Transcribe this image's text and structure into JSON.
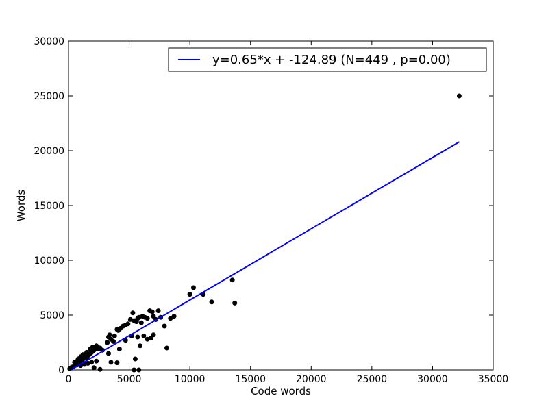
{
  "chart_data": {
    "type": "scatter",
    "xlabel": "Code words",
    "ylabel": "Words",
    "xlim": [
      0,
      35000
    ],
    "ylim": [
      0,
      30000
    ],
    "xticks": [
      0,
      5000,
      10000,
      15000,
      20000,
      25000,
      30000,
      35000
    ],
    "yticks": [
      0,
      5000,
      10000,
      15000,
      20000,
      25000,
      30000
    ],
    "xtick_labels": [
      "0",
      "5000",
      "10000",
      "15000",
      "20000",
      "25000",
      "30000",
      "35000"
    ],
    "ytick_labels": [
      "0",
      "5000",
      "10000",
      "15000",
      "20000",
      "25000",
      "30000"
    ],
    "grid": false,
    "legend_position": "top-right",
    "legend": [
      {
        "label": "y=0.65*x + -124.89  (N=449 , p=0.00)",
        "color": "#0000ff",
        "kind": "line"
      }
    ],
    "series": [
      {
        "kind": "scatter",
        "color": "#000000",
        "points": [
          [
            100,
            100
          ],
          [
            200,
            200
          ],
          [
            300,
            250
          ],
          [
            400,
            300
          ],
          [
            500,
            400
          ],
          [
            600,
            500
          ],
          [
            700,
            450
          ],
          [
            800,
            600
          ],
          [
            900,
            700
          ],
          [
            1000,
            750
          ],
          [
            1100,
            900
          ],
          [
            1200,
            1000
          ],
          [
            1300,
            1100
          ],
          [
            1400,
            1200
          ],
          [
            1500,
            1100
          ],
          [
            1600,
            1300
          ],
          [
            1700,
            1400
          ],
          [
            1800,
            1500
          ],
          [
            1900,
            1600
          ],
          [
            2000,
            1700
          ],
          [
            2100,
            1800
          ],
          [
            2200,
            1900
          ],
          [
            2300,
            2000
          ],
          [
            2400,
            2100
          ],
          [
            2500,
            1900
          ],
          [
            800,
            1000
          ],
          [
            1000,
            1200
          ],
          [
            1200,
            1400
          ],
          [
            1500,
            1600
          ],
          [
            1800,
            1900
          ],
          [
            2000,
            2100
          ],
          [
            2300,
            2200
          ],
          [
            2600,
            2000
          ],
          [
            2800,
            1800
          ],
          [
            1000,
            400
          ],
          [
            1300,
            500
          ],
          [
            1600,
            600
          ],
          [
            1900,
            700
          ],
          [
            2100,
            200
          ],
          [
            2300,
            800
          ],
          [
            2600,
            50
          ],
          [
            500,
            700
          ],
          [
            700,
            800
          ],
          [
            3200,
            2500
          ],
          [
            3300,
            3000
          ],
          [
            3400,
            3200
          ],
          [
            3500,
            2800
          ],
          [
            3700,
            2600
          ],
          [
            3800,
            3100
          ],
          [
            4000,
            3700
          ],
          [
            4100,
            3600
          ],
          [
            4300,
            3800
          ],
          [
            4500,
            4000
          ],
          [
            4700,
            4100
          ],
          [
            4900,
            4200
          ],
          [
            5100,
            4600
          ],
          [
            5300,
            5200
          ],
          [
            5400,
            4500
          ],
          [
            5600,
            4400
          ],
          [
            5700,
            4700
          ],
          [
            5800,
            4800
          ],
          [
            6000,
            4300
          ],
          [
            6100,
            4900
          ],
          [
            6300,
            4800
          ],
          [
            6500,
            4700
          ],
          [
            6700,
            5400
          ],
          [
            6900,
            5300
          ],
          [
            7000,
            4900
          ],
          [
            7200,
            4600
          ],
          [
            7400,
            5400
          ],
          [
            7600,
            4800
          ],
          [
            7900,
            4000
          ],
          [
            8400,
            4700
          ],
          [
            8700,
            4900
          ],
          [
            3300,
            1500
          ],
          [
            3500,
            700
          ],
          [
            4000,
            650
          ],
          [
            4200,
            1900
          ],
          [
            4700,
            2700
          ],
          [
            5200,
            3100
          ],
          [
            5500,
            1000
          ],
          [
            5700,
            3000
          ],
          [
            5900,
            2200
          ],
          [
            6200,
            3100
          ],
          [
            6500,
            2800
          ],
          [
            6800,
            2900
          ],
          [
            7000,
            3200
          ],
          [
            5400,
            0
          ],
          [
            5800,
            0
          ],
          [
            8100,
            2000
          ],
          [
            10000,
            6900
          ],
          [
            10300,
            7500
          ],
          [
            11100,
            6900
          ],
          [
            11800,
            6200
          ],
          [
            13500,
            8200
          ],
          [
            13700,
            6100
          ],
          [
            32200,
            25000
          ]
        ]
      },
      {
        "kind": "line",
        "color": "#0000ff",
        "slope": 0.65,
        "intercept": -124.89,
        "x_range": [
          0,
          32200
        ]
      }
    ]
  }
}
